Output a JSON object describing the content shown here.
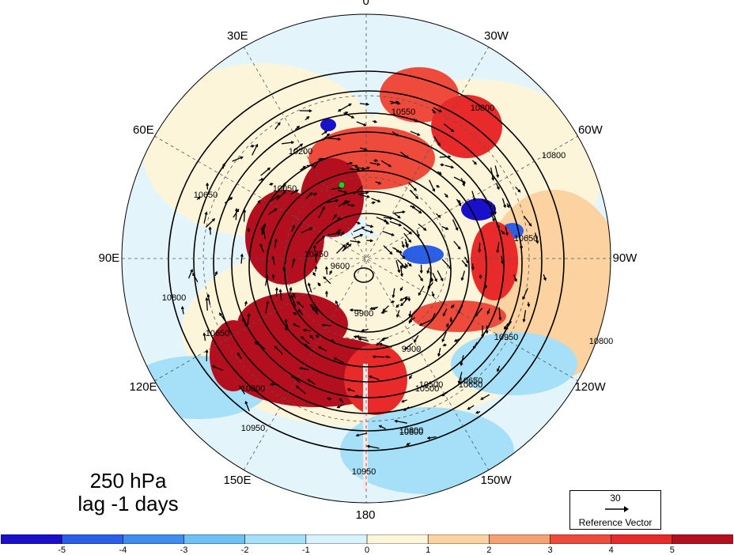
{
  "map": {
    "longitude_labels": [
      {
        "text": "0",
        "angle": 0
      },
      {
        "text": "30W",
        "angle": 30
      },
      {
        "text": "60W",
        "angle": 60
      },
      {
        "text": "90W",
        "angle": 90
      },
      {
        "text": "120W",
        "angle": 120
      },
      {
        "text": "150W",
        "angle": 150
      },
      {
        "text": "180",
        "angle": 180
      },
      {
        "text": "150E",
        "angle": 210
      },
      {
        "text": "120E",
        "angle": 240
      },
      {
        "text": "90E",
        "angle": 270
      },
      {
        "text": "60E",
        "angle": 300
      },
      {
        "text": "30E",
        "angle": 330
      }
    ],
    "contour_labels": [
      "10800",
      "10800",
      "10950",
      "10950",
      "10800",
      "10650",
      "10500",
      "10350",
      "10200",
      "10050",
      "9900",
      "9600",
      "10550",
      "10650",
      "10800",
      "9900",
      "10500",
      "10650",
      "10800",
      "10950",
      "10800",
      "10650",
      "10800",
      "10650"
    ],
    "highlight_point_color": "#22cc22"
  },
  "title": {
    "level": "250 hPa",
    "lag": "lag -1 days"
  },
  "reference_vector": {
    "magnitude": "30",
    "label": "Reference Vector"
  },
  "colorbar": {
    "ticks": [
      "-5",
      "-4",
      "-3",
      "-2",
      "-1",
      "0",
      "1",
      "2",
      "3",
      "4",
      "5"
    ],
    "colors": [
      "#1a10cc",
      "#2b5fe8",
      "#3f8cf0",
      "#6ec0f5",
      "#a6e0f8",
      "#d8f3fc",
      "#fdf5d9",
      "#fbd2a0",
      "#f5a272",
      "#ee4b3c",
      "#e82a2a",
      "#b40f1e"
    ]
  }
}
